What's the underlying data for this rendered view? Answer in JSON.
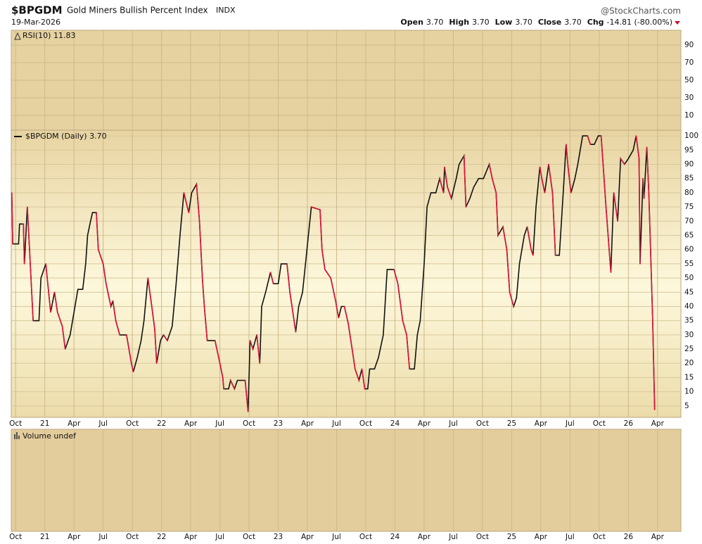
{
  "header": {
    "symbol": "$BPGDM",
    "name": "Gold Miners Bullish Percent Index",
    "exchange": "INDX",
    "source": "@StockCharts.com",
    "date": "19-Mar-2026",
    "quote": [
      {
        "label": "Open",
        "value": "3.70"
      },
      {
        "label": "High",
        "value": "3.70"
      },
      {
        "label": "Low",
        "value": "3.70"
      },
      {
        "label": "Close",
        "value": "3.70"
      },
      {
        "label": "Chg",
        "value": "-14.81 (-80.00%)"
      }
    ]
  },
  "rsi_panel": {
    "label": "RSI(10) 11.83",
    "ylim": [
      -6.8,
      106.8
    ],
    "yticks": [
      10,
      30,
      50,
      70,
      90
    ]
  },
  "volume_panel": {
    "label": "Volume undef"
  },
  "chart_data": {
    "type": "line",
    "grid": true,
    "rise_color": "#111111",
    "fall_color": "#e0143c",
    "xlim": [
      -0.45,
      68.4
    ],
    "ylim": [
      1,
      102
    ],
    "yticks": [
      5,
      10,
      15,
      20,
      25,
      30,
      35,
      40,
      45,
      50,
      55,
      60,
      65,
      70,
      75,
      80,
      85,
      90,
      95,
      100
    ],
    "xticks": [
      {
        "value": 0,
        "label": "Oct"
      },
      {
        "value": 3,
        "label": "21"
      },
      {
        "value": 6,
        "label": "Apr"
      },
      {
        "value": 9,
        "label": "Jul"
      },
      {
        "value": 12,
        "label": "Oct"
      },
      {
        "value": 15,
        "label": "22"
      },
      {
        "value": 18,
        "label": "Apr"
      },
      {
        "value": 21,
        "label": "Jul"
      },
      {
        "value": 24,
        "label": "Oct"
      },
      {
        "value": 27,
        "label": "23"
      },
      {
        "value": 30,
        "label": "Apr"
      },
      {
        "value": 33,
        "label": "Jul"
      },
      {
        "value": 36,
        "label": "Oct"
      },
      {
        "value": 39,
        "label": "24"
      },
      {
        "value": 42,
        "label": "Apr"
      },
      {
        "value": 45,
        "label": "Jul"
      },
      {
        "value": 48,
        "label": "Oct"
      },
      {
        "value": 51,
        "label": "25"
      },
      {
        "value": 54,
        "label": "Apr"
      },
      {
        "value": 57,
        "label": "Jul"
      },
      {
        "value": 60,
        "label": "Oct"
      },
      {
        "value": 63,
        "label": "26"
      },
      {
        "value": 66,
        "label": "Apr"
      }
    ],
    "x": [
      -0.4,
      -0.3,
      0.3,
      0.4,
      0.8,
      0.9,
      1.2,
      1.4,
      1.8,
      2.4,
      2.6,
      3.1,
      3.6,
      4.0,
      4.3,
      4.8,
      5.1,
      5.4,
      5.6,
      6.1,
      6.4,
      6.9,
      7.2,
      7.4,
      7.7,
      7.9,
      8.3,
      8.5,
      9.0,
      9.3,
      9.8,
      10.0,
      10.3,
      10.7,
      11.4,
      11.9,
      12.1,
      12.5,
      12.9,
      13.2,
      13.6,
      14.0,
      14.3,
      14.5,
      14.9,
      15.2,
      15.6,
      16.1,
      16.5,
      16.9,
      17.3,
      17.8,
      18.1,
      18.6,
      18.9,
      19.2,
      19.4,
      19.7,
      20.5,
      21.0,
      21.3,
      21.4,
      21.9,
      22.1,
      22.5,
      22.8,
      23.6,
      23.9,
      24.1,
      24.4,
      24.8,
      25.1,
      25.3,
      25.7,
      26.2,
      26.5,
      27.0,
      27.3,
      27.9,
      28.2,
      28.5,
      28.8,
      29.1,
      29.5,
      29.8,
      30.1,
      30.4,
      31.3,
      31.5,
      31.8,
      32.4,
      32.9,
      33.2,
      33.5,
      33.8,
      34.2,
      34.6,
      34.9,
      35.3,
      35.6,
      35.9,
      36.2,
      36.4,
      36.9,
      37.3,
      37.8,
      38.2,
      38.9,
      39.3,
      39.8,
      40.2,
      40.5,
      41.0,
      41.3,
      41.6,
      42.0,
      42.3,
      42.7,
      43.2,
      43.6,
      44.0,
      44.1,
      44.4,
      44.8,
      45.3,
      45.6,
      46.1,
      46.3,
      46.7,
      47.1,
      47.6,
      48.1,
      48.7,
      49.0,
      49.4,
      49.6,
      50.1,
      50.5,
      50.8,
      51.2,
      51.5,
      51.8,
      52.3,
      52.6,
      53.0,
      53.2,
      53.5,
      53.9,
      54.1,
      54.4,
      54.8,
      55.2,
      55.5,
      55.9,
      56.3,
      56.6,
      56.8,
      57.1,
      57.5,
      57.8,
      58.3,
      58.8,
      59.1,
      59.5,
      59.9,
      60.2,
      60.4,
      60.7,
      61.2,
      61.5,
      61.9,
      62.2,
      62.6,
      63.0,
      63.5,
      63.8,
      64.1,
      64.2,
      64.5,
      64.6,
      64.9,
      65.1,
      65.3,
      65.5,
      65.7
    ],
    "series": [
      {
        "name": "$BPGDM (Daily) 3.70",
        "color": "#111111",
        "values": [
          80,
          62,
          62,
          69,
          69,
          55,
          75,
          62,
          35,
          35,
          50,
          55,
          38,
          45,
          38,
          33,
          25,
          28,
          30,
          40,
          46,
          46,
          55,
          65,
          70,
          73,
          73,
          60,
          55,
          48,
          40,
          42,
          35,
          30,
          30,
          20,
          17,
          22,
          28,
          35,
          50,
          40,
          32,
          20,
          28,
          30,
          28,
          33,
          48,
          65,
          80,
          73,
          80,
          83,
          70,
          50,
          40,
          28,
          28,
          20,
          15,
          11,
          11,
          14,
          11,
          14,
          14,
          3,
          28,
          25,
          30,
          20,
          40,
          45,
          52,
          48,
          48,
          55,
          55,
          45,
          38,
          31,
          40,
          45,
          55,
          65,
          75,
          74,
          60,
          53,
          50,
          42,
          36,
          40,
          40,
          34,
          25,
          18,
          14,
          18,
          11,
          11,
          18,
          18,
          22,
          30,
          53,
          53,
          48,
          35,
          30,
          18,
          18,
          30,
          35,
          55,
          75,
          80,
          80,
          85,
          80,
          89,
          82,
          78,
          85,
          90,
          93,
          75,
          78,
          82,
          85,
          85,
          90,
          85,
          80,
          65,
          68,
          60,
          45,
          40,
          43,
          55,
          65,
          68,
          60,
          58,
          75,
          89,
          85,
          80,
          90,
          80,
          58,
          58,
          80,
          97,
          89,
          80,
          85,
          90,
          100,
          100,
          97,
          97,
          100,
          100,
          90,
          75,
          52,
          80,
          70,
          92,
          90,
          92,
          95,
          100,
          92,
          55,
          85,
          78,
          96,
          80,
          58,
          35,
          3.7
        ]
      }
    ]
  }
}
